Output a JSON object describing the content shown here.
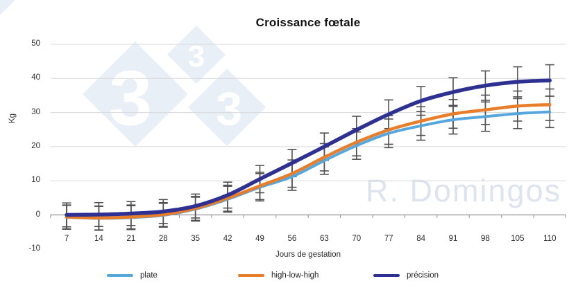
{
  "watermark": {
    "digit": "3",
    "signature": "R. Domingos"
  },
  "chart_data": {
    "type": "line",
    "title": "Croissance fœtale",
    "xlabel": "Jours de gestation",
    "ylabel": "Kg",
    "categories": [
      7,
      14,
      21,
      28,
      35,
      42,
      49,
      56,
      63,
      70,
      77,
      84,
      91,
      98,
      105,
      110
    ],
    "yticks": [
      -10,
      0,
      10,
      20,
      30,
      40,
      50
    ],
    "ylim": [
      -10,
      50
    ],
    "grid": true,
    "legend_position": "bottom",
    "error_bars": [
      3.5,
      3.5,
      3.5,
      3.5,
      3.5,
      3.8,
      4.0,
      4.0,
      4.0,
      4.0,
      4.2,
      4.2,
      4.2,
      4.3,
      4.4,
      4.6
    ],
    "error_bar_color": "#4f4f4f",
    "grid_color": "#d9d9d9",
    "axis_color": "#8f8f8f",
    "series": [
      {
        "name": "plate",
        "color": "#55a7dd",
        "values": [
          -0.7,
          -1.0,
          -0.8,
          -0.1,
          1.7,
          4.6,
          8.1,
          11.2,
          15.9,
          20.3,
          23.9,
          26.1,
          27.9,
          28.8,
          29.7,
          30.2
        ]
      },
      {
        "name": "high-low-high",
        "color": "#e87d2a",
        "values": [
          -0.6,
          -0.9,
          -0.6,
          0.1,
          1.9,
          4.9,
          8.5,
          12.1,
          16.9,
          21.3,
          24.9,
          27.5,
          29.6,
          30.8,
          31.9,
          32.3
        ]
      },
      {
        "name": "précision",
        "color": "#2e3192",
        "values": [
          0.0,
          0.1,
          0.4,
          1.0,
          2.6,
          5.8,
          10.5,
          15.2,
          20.0,
          24.9,
          29.5,
          33.4,
          36.0,
          37.9,
          39.0,
          39.4
        ]
      }
    ]
  }
}
